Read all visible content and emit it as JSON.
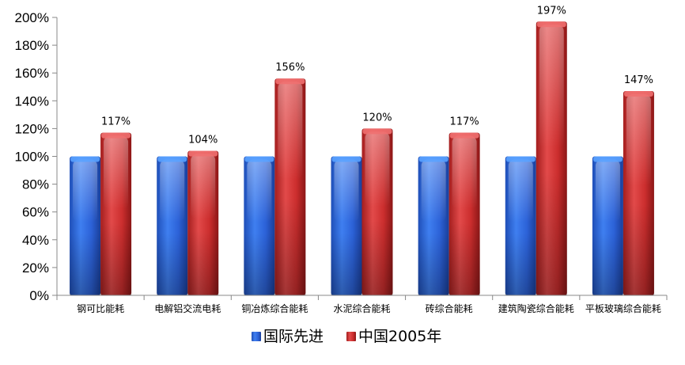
{
  "chart_data": {
    "type": "bar",
    "categories": [
      "钢可比能耗",
      "电解铝交流电耗",
      "铜冶炼综合能耗",
      "水泥综合能耗",
      "砖综合能耗",
      "建筑陶瓷综合能耗",
      "平板玻璃综合能耗"
    ],
    "series": [
      {
        "name": "国际先进",
        "values": [
          100,
          100,
          100,
          100,
          100,
          100,
          100
        ],
        "color": "#2f5fd6",
        "data_labels": [
          "",
          "",
          "",
          "",
          "",
          "",
          ""
        ]
      },
      {
        "name": "中国2005年",
        "values": [
          117,
          104,
          156,
          120,
          117,
          197,
          147
        ],
        "color": "#cc2e2e",
        "data_labels": [
          "117%",
          "104%",
          "156%",
          "120%",
          "117%",
          "197%",
          "147%"
        ]
      }
    ],
    "ylim": [
      0,
      200
    ],
    "yticks": [
      0,
      20,
      40,
      60,
      80,
      100,
      120,
      140,
      160,
      180,
      200
    ],
    "ytick_labels": [
      "0%",
      "20%",
      "40%",
      "60%",
      "80%",
      "100%",
      "120%",
      "140%",
      "160%",
      "180%",
      "200%"
    ],
    "title": "",
    "xlabel": "",
    "ylabel": "",
    "grid": false,
    "legend_position": "bottom"
  }
}
